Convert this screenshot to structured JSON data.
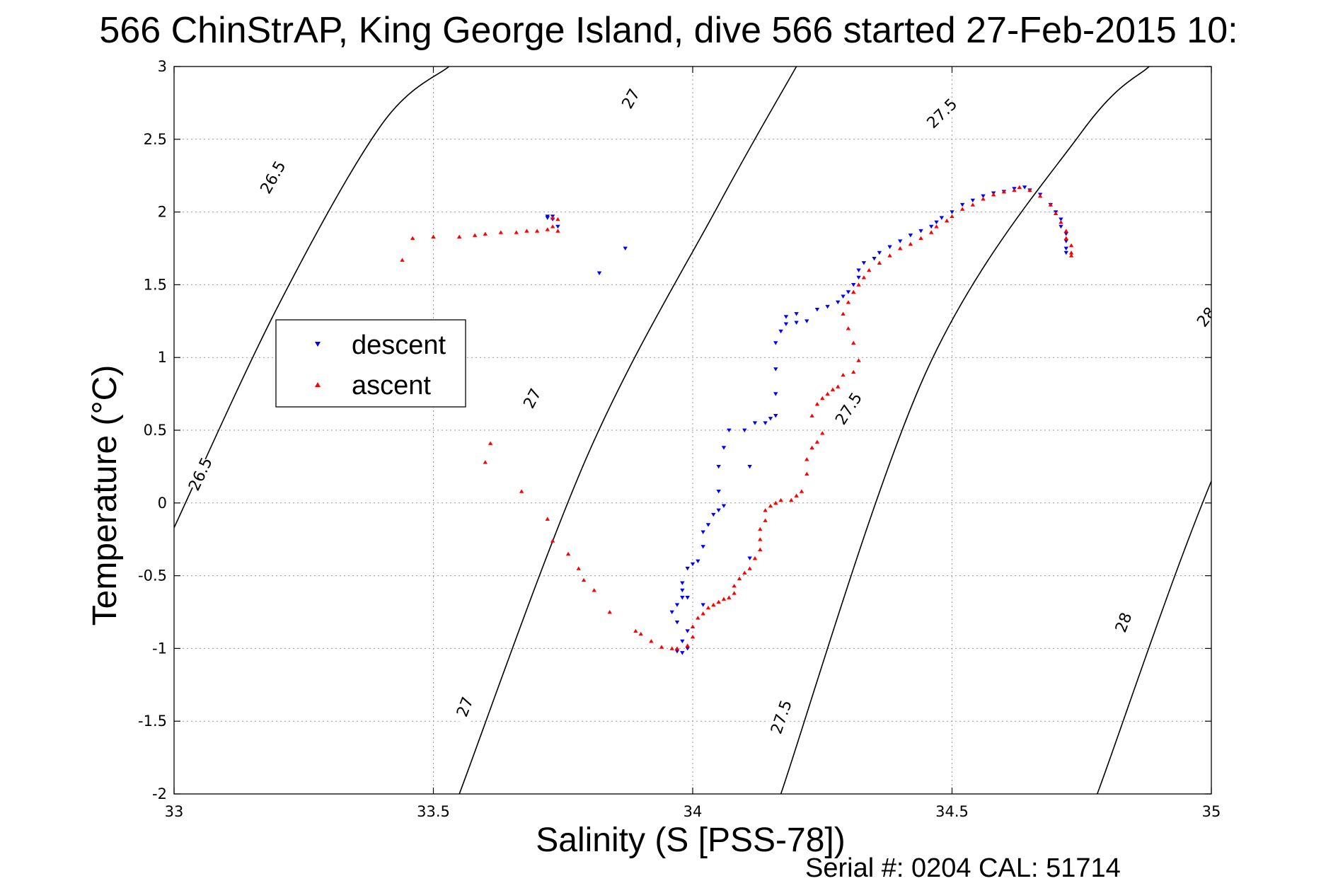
{
  "title": "566 ChinStrAP, King George Island, dive 566 started 27-Feb-2015 10:",
  "footer": "Serial #: 0204  CAL: 51714",
  "chart_data": {
    "type": "scatter",
    "title": "566 ChinStrAP, King George Island, dive 566 started 27-Feb-2015 10:",
    "xlabel": "Salinity (S [PSS-78])",
    "ylabel": "Temperature (°C)",
    "xlim": [
      33,
      35
    ],
    "ylim": [
      -2,
      3
    ],
    "xticks": [
      33,
      33.5,
      34,
      34.5,
      35
    ],
    "xtick_labels": [
      "33",
      "33.5",
      "34",
      "34.5",
      "35"
    ],
    "yticks": [
      -2,
      -1.5,
      -1,
      -0.5,
      0,
      0.5,
      1,
      1.5,
      2,
      2.5,
      3
    ],
    "ytick_labels": [
      "-2",
      "-1.5",
      "-1",
      "-0.5",
      "0",
      "0.5",
      "1",
      "1.5",
      "2",
      "2.5",
      "3"
    ],
    "grid": true,
    "legend": {
      "position": "left-middle",
      "entries": [
        "descent",
        "ascent"
      ]
    },
    "colors": {
      "descent": "#0000ff",
      "ascent": "#ff0000",
      "contour": "#000000"
    },
    "contours": [
      {
        "label": "26.5",
        "points": [
          [
            33.0,
            -0.17
          ],
          [
            33.2,
            1.35
          ],
          [
            33.4,
            2.6
          ],
          [
            33.53,
            3.0
          ]
        ],
        "label_positions": [
          [
            33.19,
            2.24
          ],
          [
            33.05,
            0.2
          ]
        ]
      },
      {
        "label": "27",
        "points": [
          [
            33.55,
            -2.0
          ],
          [
            33.8,
            0.35
          ],
          [
            34.05,
            2.05
          ],
          [
            34.2,
            3.0
          ]
        ],
        "label_positions": [
          [
            33.88,
            2.78
          ],
          [
            33.69,
            0.72
          ],
          [
            33.56,
            -1.4
          ]
        ]
      },
      {
        "label": "27.5",
        "points": [
          [
            34.17,
            -2.0
          ],
          [
            34.45,
            0.9
          ],
          [
            34.75,
            2.55
          ],
          [
            34.88,
            3.0
          ]
        ],
        "label_positions": [
          [
            34.48,
            2.68
          ],
          [
            34.3,
            0.65
          ],
          [
            34.17,
            -1.47
          ]
        ]
      },
      {
        "label": "28",
        "points": [
          [
            34.78,
            -2.0
          ],
          [
            35.05,
            0.55
          ],
          [
            35.3,
            1.7
          ]
        ],
        "label_positions": [
          [
            34.99,
            1.28
          ],
          [
            34.83,
            -0.82
          ]
        ]
      }
    ],
    "series": [
      {
        "name": "descent",
        "marker": "triangle-down",
        "points": [
          [
            33.72,
            1.97
          ],
          [
            33.72,
            1.96
          ],
          [
            33.73,
            1.97
          ],
          [
            33.73,
            1.95
          ],
          [
            33.74,
            1.9
          ],
          [
            33.82,
            1.58
          ],
          [
            33.87,
            1.75
          ],
          [
            33.97,
            -1.02
          ],
          [
            33.98,
            -1.03
          ],
          [
            33.99,
            -1.0
          ],
          [
            33.98,
            -0.95
          ],
          [
            33.99,
            -0.88
          ],
          [
            33.97,
            -0.82
          ],
          [
            33.96,
            -0.75
          ],
          [
            33.97,
            -0.7
          ],
          [
            33.98,
            -0.65
          ],
          [
            33.99,
            -0.65
          ],
          [
            33.98,
            -0.6
          ],
          [
            33.98,
            -0.55
          ],
          [
            33.99,
            -0.45
          ],
          [
            34.0,
            -0.42
          ],
          [
            34.01,
            -0.4
          ],
          [
            34.02,
            -0.3
          ],
          [
            34.02,
            -0.2
          ],
          [
            34.03,
            -0.15
          ],
          [
            34.04,
            -0.08
          ],
          [
            34.05,
            -0.05
          ],
          [
            34.06,
            -0.02
          ],
          [
            34.05,
            0.08
          ],
          [
            34.05,
            0.25
          ],
          [
            34.06,
            0.38
          ],
          [
            34.07,
            0.5
          ],
          [
            34.11,
            0.25
          ],
          [
            34.1,
            0.5
          ],
          [
            34.12,
            0.55
          ],
          [
            34.14,
            0.55
          ],
          [
            34.15,
            0.58
          ],
          [
            34.16,
            0.6
          ],
          [
            34.16,
            0.75
          ],
          [
            34.16,
            0.92
          ],
          [
            34.16,
            1.1
          ],
          [
            34.17,
            1.18
          ],
          [
            34.18,
            1.23
          ],
          [
            34.2,
            1.24
          ],
          [
            34.22,
            1.25
          ],
          [
            34.18,
            1.28
          ],
          [
            34.2,
            1.3
          ],
          [
            34.24,
            1.33
          ],
          [
            34.26,
            1.35
          ],
          [
            34.28,
            1.38
          ],
          [
            34.29,
            1.42
          ],
          [
            34.3,
            1.45
          ],
          [
            34.31,
            1.5
          ],
          [
            34.32,
            1.55
          ],
          [
            34.32,
            1.6
          ],
          [
            34.33,
            1.65
          ],
          [
            34.35,
            1.68
          ],
          [
            34.36,
            1.72
          ],
          [
            34.38,
            1.76
          ],
          [
            34.4,
            1.8
          ],
          [
            34.42,
            1.84
          ],
          [
            34.44,
            1.87
          ],
          [
            34.46,
            1.9
          ],
          [
            34.47,
            1.93
          ],
          [
            34.48,
            1.96
          ],
          [
            34.5,
            2.0
          ],
          [
            34.52,
            2.05
          ],
          [
            34.54,
            2.08
          ],
          [
            34.56,
            2.11
          ],
          [
            34.58,
            2.13
          ],
          [
            34.6,
            2.14
          ],
          [
            34.62,
            2.16
          ],
          [
            34.64,
            2.17
          ],
          [
            34.65,
            2.15
          ],
          [
            34.67,
            2.12
          ],
          [
            34.69,
            2.05
          ],
          [
            34.7,
            2.0
          ],
          [
            34.71,
            1.95
          ],
          [
            34.71,
            1.9
          ],
          [
            34.72,
            1.85
          ],
          [
            34.72,
            1.8
          ],
          [
            34.72,
            1.75
          ],
          [
            34.72,
            1.72
          ],
          [
            34.11,
            -0.38
          ],
          [
            34.02,
            -0.7
          ]
        ]
      },
      {
        "name": "ascent",
        "marker": "triangle-up",
        "points": [
          [
            33.44,
            1.67
          ],
          [
            33.46,
            1.82
          ],
          [
            33.5,
            1.83
          ],
          [
            33.55,
            1.83
          ],
          [
            33.58,
            1.84
          ],
          [
            33.6,
            1.85
          ],
          [
            33.63,
            1.86
          ],
          [
            33.66,
            1.86
          ],
          [
            33.68,
            1.87
          ],
          [
            33.7,
            1.87
          ],
          [
            33.72,
            1.88
          ],
          [
            33.73,
            1.9
          ],
          [
            33.74,
            1.87
          ],
          [
            33.73,
            1.96
          ],
          [
            33.74,
            1.95
          ],
          [
            33.6,
            0.28
          ],
          [
            33.61,
            0.41
          ],
          [
            33.67,
            0.08
          ],
          [
            33.72,
            -0.11
          ],
          [
            33.73,
            -0.26
          ],
          [
            33.76,
            -0.35
          ],
          [
            33.78,
            -0.45
          ],
          [
            33.79,
            -0.53
          ],
          [
            33.81,
            -0.6
          ],
          [
            33.84,
            -0.75
          ],
          [
            33.89,
            -0.88
          ],
          [
            33.9,
            -0.9
          ],
          [
            33.92,
            -0.95
          ],
          [
            33.94,
            -0.99
          ],
          [
            33.96,
            -1.0
          ],
          [
            33.97,
            -1.0
          ],
          [
            33.99,
            -0.98
          ],
          [
            34.0,
            -0.92
          ],
          [
            34.0,
            -0.85
          ],
          [
            34.01,
            -0.79
          ],
          [
            34.02,
            -0.76
          ],
          [
            34.03,
            -0.72
          ],
          [
            34.04,
            -0.7
          ],
          [
            34.05,
            -0.68
          ],
          [
            34.06,
            -0.66
          ],
          [
            34.07,
            -0.65
          ],
          [
            34.08,
            -0.62
          ],
          [
            34.08,
            -0.57
          ],
          [
            34.09,
            -0.52
          ],
          [
            34.1,
            -0.48
          ],
          [
            34.11,
            -0.45
          ],
          [
            34.12,
            -0.38
          ],
          [
            34.13,
            -0.32
          ],
          [
            34.13,
            -0.25
          ],
          [
            34.13,
            -0.18
          ],
          [
            34.14,
            -0.12
          ],
          [
            34.14,
            -0.05
          ],
          [
            34.15,
            -0.02
          ],
          [
            34.16,
            0.0
          ],
          [
            34.17,
            0.02
          ],
          [
            34.19,
            0.02
          ],
          [
            34.2,
            0.05
          ],
          [
            34.21,
            0.08
          ],
          [
            34.22,
            0.2
          ],
          [
            34.22,
            0.3
          ],
          [
            34.23,
            0.38
          ],
          [
            34.24,
            0.42
          ],
          [
            34.25,
            0.48
          ],
          [
            34.23,
            0.6
          ],
          [
            34.24,
            0.68
          ],
          [
            34.25,
            0.72
          ],
          [
            34.26,
            0.75
          ],
          [
            34.27,
            0.78
          ],
          [
            34.28,
            0.8
          ],
          [
            34.29,
            0.88
          ],
          [
            34.31,
            0.9
          ],
          [
            34.32,
            0.98
          ],
          [
            34.31,
            1.1
          ],
          [
            34.3,
            1.2
          ],
          [
            34.29,
            1.3
          ],
          [
            34.3,
            1.38
          ],
          [
            34.31,
            1.45
          ],
          [
            34.32,
            1.5
          ],
          [
            34.33,
            1.55
          ],
          [
            34.34,
            1.6
          ],
          [
            34.36,
            1.65
          ],
          [
            34.38,
            1.7
          ],
          [
            34.4,
            1.75
          ],
          [
            34.42,
            1.78
          ],
          [
            34.44,
            1.82
          ],
          [
            34.46,
            1.86
          ],
          [
            34.47,
            1.9
          ],
          [
            34.49,
            1.94
          ],
          [
            34.5,
            1.97
          ],
          [
            34.52,
            2.02
          ],
          [
            34.54,
            2.05
          ],
          [
            34.56,
            2.09
          ],
          [
            34.58,
            2.12
          ],
          [
            34.6,
            2.14
          ],
          [
            34.62,
            2.15
          ],
          [
            34.63,
            2.17
          ],
          [
            34.65,
            2.15
          ],
          [
            34.67,
            2.11
          ],
          [
            34.69,
            2.05
          ],
          [
            34.7,
            1.99
          ],
          [
            34.71,
            1.93
          ],
          [
            34.72,
            1.87
          ],
          [
            34.72,
            1.82
          ],
          [
            34.73,
            1.77
          ],
          [
            34.73,
            1.72
          ],
          [
            34.73,
            1.7
          ]
        ]
      }
    ]
  }
}
